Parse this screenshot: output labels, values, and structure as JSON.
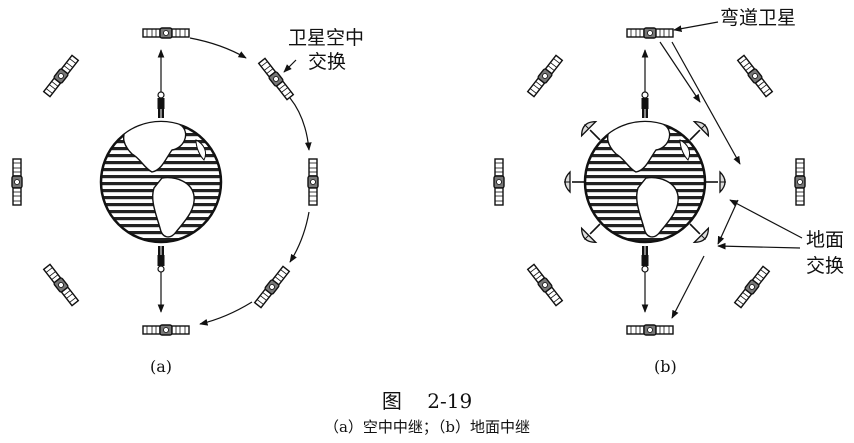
{
  "diagram_a": {
    "sublabel": "(a)",
    "annotation_line1": "卫星空中",
    "annotation_line2": "交换"
  },
  "diagram_b": {
    "sublabel": "(b)",
    "annotation_top": "弯道卫星",
    "annotation_bottom_line1": "地面",
    "annotation_bottom_line2": "交换"
  },
  "caption": {
    "title": "图    2-19",
    "subtitle": "（a）空中中继；（b）地面中继"
  },
  "icons": {
    "satellite": "satellite-icon",
    "earth": "earth-globe-icon",
    "person": "person-icon",
    "dish": "ground-station-dish-icon"
  }
}
